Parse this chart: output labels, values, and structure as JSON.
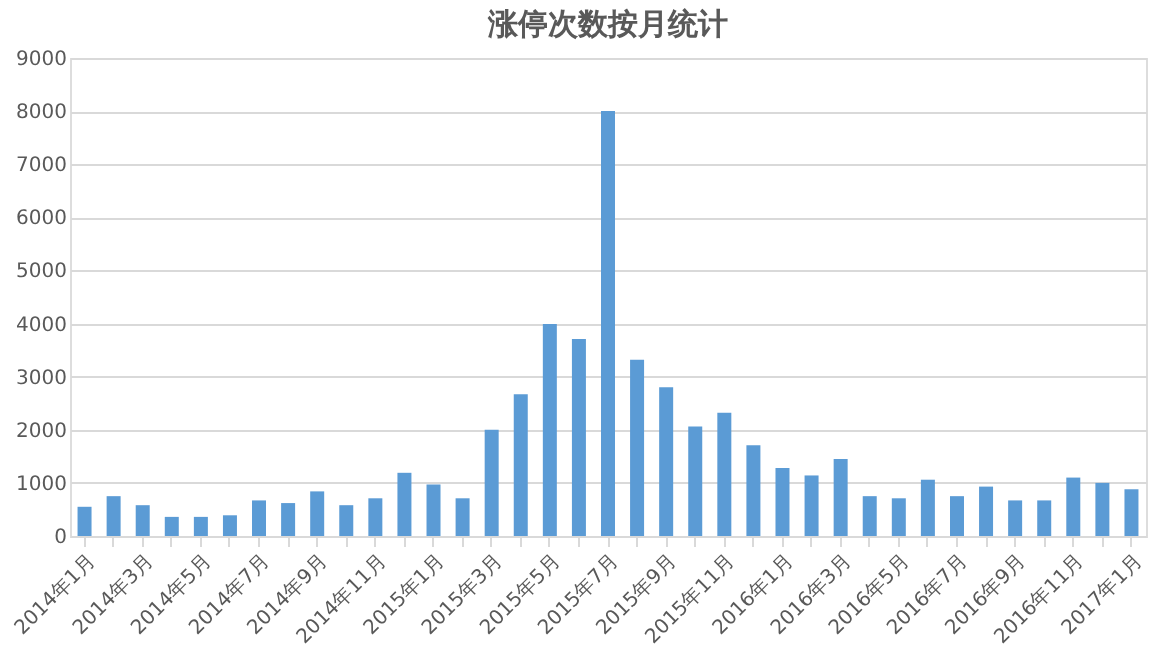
{
  "chart_data": {
    "type": "bar",
    "title": "涨停次数按月统计",
    "categories": [
      "2014年1月",
      null,
      "2014年3月",
      null,
      "2014年5月",
      null,
      "2014年7月",
      null,
      "2014年9月",
      null,
      "2014年11月",
      null,
      "2015年1月",
      null,
      "2015年3月",
      null,
      "2015年5月",
      null,
      "2015年7月",
      null,
      "2015年9月",
      null,
      "2015年11月",
      null,
      "2016年1月",
      null,
      "2016年3月",
      null,
      "2016年5月",
      null,
      "2016年7月",
      null,
      "2016年9月",
      null,
      "2016年11月",
      null,
      "2017年1月"
    ],
    "values": [
      550,
      750,
      580,
      360,
      360,
      390,
      670,
      620,
      840,
      580,
      710,
      1190,
      970,
      710,
      2000,
      2670,
      3990,
      3710,
      8000,
      3320,
      2800,
      2060,
      2320,
      1710,
      1280,
      1140,
      1450,
      750,
      710,
      1060,
      750,
      930,
      670,
      670,
      1100,
      1000,
      880
    ],
    "color": "#5b9bd5",
    "ylim": [
      0,
      9000
    ],
    "yticks": [
      0,
      1000,
      2000,
      3000,
      4000,
      5000,
      6000,
      7000,
      8000,
      9000
    ],
    "grid": "y"
  }
}
